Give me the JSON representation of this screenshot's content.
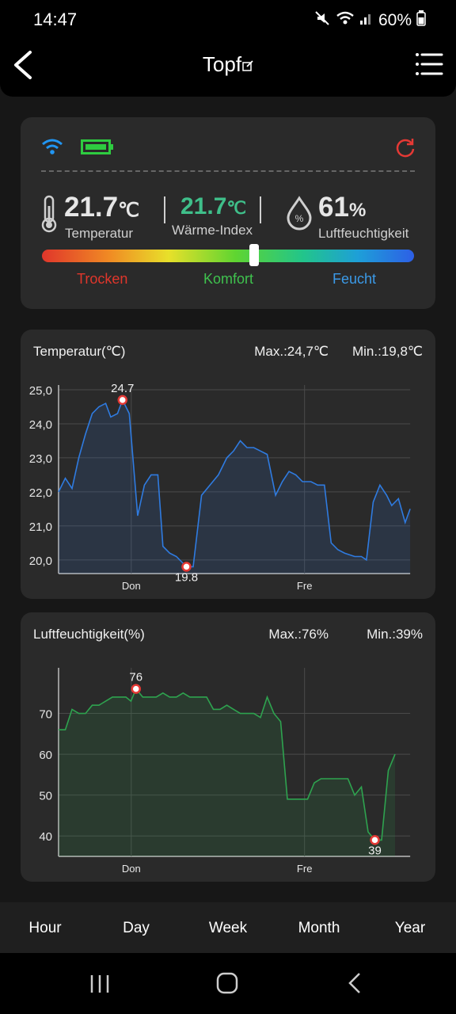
{
  "status": {
    "time": "14:47",
    "battery": "60%"
  },
  "header": {
    "title": "Topf"
  },
  "sensor": {
    "temperature_value": "21.7",
    "temperature_unit": "℃",
    "temperature_label": "Temperatur",
    "heat_index_value": "21.7",
    "heat_index_unit": "℃",
    "heat_index_label": "Wärme-Index",
    "humidity_value": "61",
    "humidity_unit": "%",
    "humidity_label": "Luftfeuchtigkeit",
    "comfort_level": 0.57,
    "zones": {
      "dry": "Trocken",
      "comfort": "Komfort",
      "wet": "Feucht"
    },
    "colors": {
      "dry": "#e0362b",
      "comfort": "#3fc24e",
      "wet": "#3b9ae8",
      "heat_index": "#3fbf8a",
      "wifi": "#2196f3",
      "battery": "#2ecc40",
      "refresh": "#e53935"
    }
  },
  "nav": {
    "tabs": [
      "Hour",
      "Day",
      "Week",
      "Month",
      "Year"
    ]
  },
  "chart_data": [
    {
      "type": "area",
      "title": "Temperatur(℃)",
      "max_label": "Max.:24,7℃",
      "min_label": "Min.:19,8℃",
      "color": "#2f7be0",
      "ylim": [
        19.6,
        25.0
      ],
      "yticks": [
        20.0,
        21.0,
        22.0,
        23.0,
        24.0,
        25.0
      ],
      "ytick_labels": [
        "20,0",
        "21,0",
        "22,0",
        "23,0",
        "24,0",
        "25,0"
      ],
      "x_ticks": [
        {
          "t": 0.216,
          "label": "Don"
        },
        {
          "t": 0.731,
          "label": "Fre"
        }
      ],
      "max_point": {
        "t": 0.19,
        "y": 24.7,
        "label": "24.7"
      },
      "min_point": {
        "t": 0.38,
        "y": 19.8,
        "label": "19.8"
      },
      "points": [
        [
          0.0,
          22.0
        ],
        [
          0.02,
          22.4
        ],
        [
          0.04,
          22.1
        ],
        [
          0.06,
          23.0
        ],
        [
          0.08,
          23.7
        ],
        [
          0.1,
          24.3
        ],
        [
          0.12,
          24.5
        ],
        [
          0.14,
          24.6
        ],
        [
          0.155,
          24.2
        ],
        [
          0.175,
          24.3
        ],
        [
          0.19,
          24.7
        ],
        [
          0.21,
          24.3
        ],
        [
          0.235,
          21.3
        ],
        [
          0.255,
          22.2
        ],
        [
          0.275,
          22.5
        ],
        [
          0.295,
          22.5
        ],
        [
          0.31,
          20.4
        ],
        [
          0.33,
          20.2
        ],
        [
          0.35,
          20.1
        ],
        [
          0.38,
          19.8
        ],
        [
          0.4,
          19.8
        ],
        [
          0.425,
          21.9
        ],
        [
          0.45,
          22.2
        ],
        [
          0.475,
          22.5
        ],
        [
          0.5,
          23.0
        ],
        [
          0.52,
          23.2
        ],
        [
          0.54,
          23.5
        ],
        [
          0.56,
          23.3
        ],
        [
          0.58,
          23.3
        ],
        [
          0.6,
          23.2
        ],
        [
          0.62,
          23.1
        ],
        [
          0.645,
          21.9
        ],
        [
          0.665,
          22.3
        ],
        [
          0.685,
          22.6
        ],
        [
          0.705,
          22.5
        ],
        [
          0.725,
          22.3
        ],
        [
          0.75,
          22.3
        ],
        [
          0.77,
          22.2
        ],
        [
          0.79,
          22.2
        ],
        [
          0.81,
          20.5
        ],
        [
          0.83,
          20.3
        ],
        [
          0.85,
          20.2
        ],
        [
          0.88,
          20.1
        ],
        [
          0.9,
          20.1
        ],
        [
          0.915,
          20.0
        ],
        [
          0.935,
          21.7
        ],
        [
          0.955,
          22.2
        ],
        [
          0.975,
          21.9
        ],
        [
          0.99,
          21.6
        ],
        [
          1.01,
          21.8
        ],
        [
          1.03,
          21.1
        ],
        [
          1.045,
          21.5
        ]
      ]
    },
    {
      "type": "area",
      "title": "Luftfeuchtigkeit(%)",
      "max_label": "Max.:76%",
      "min_label": "Min.:39%",
      "color": "#2ea34f",
      "ylim": [
        35,
        80
      ],
      "yticks": [
        40,
        50,
        60,
        70
      ],
      "ytick_labels": [
        "40",
        "50",
        "60",
        "70"
      ],
      "x_ticks": [
        {
          "t": 0.216,
          "label": "Don"
        },
        {
          "t": 0.731,
          "label": "Fre"
        }
      ],
      "max_point": {
        "t": 0.23,
        "y": 76,
        "label": "76"
      },
      "min_point": {
        "t": 0.94,
        "y": 39,
        "label": "39"
      },
      "points": [
        [
          0.0,
          66
        ],
        [
          0.02,
          66
        ],
        [
          0.04,
          71
        ],
        [
          0.06,
          70
        ],
        [
          0.08,
          70
        ],
        [
          0.1,
          72
        ],
        [
          0.12,
          72
        ],
        [
          0.14,
          73
        ],
        [
          0.16,
          74
        ],
        [
          0.18,
          74
        ],
        [
          0.2,
          74
        ],
        [
          0.215,
          73
        ],
        [
          0.23,
          76
        ],
        [
          0.25,
          74
        ],
        [
          0.27,
          74
        ],
        [
          0.29,
          74
        ],
        [
          0.31,
          75
        ],
        [
          0.33,
          74
        ],
        [
          0.35,
          74
        ],
        [
          0.37,
          75
        ],
        [
          0.39,
          74
        ],
        [
          0.42,
          74
        ],
        [
          0.44,
          74
        ],
        [
          0.46,
          71
        ],
        [
          0.48,
          71
        ],
        [
          0.5,
          72
        ],
        [
          0.52,
          71
        ],
        [
          0.54,
          70
        ],
        [
          0.56,
          70
        ],
        [
          0.58,
          70
        ],
        [
          0.6,
          69
        ],
        [
          0.62,
          74
        ],
        [
          0.64,
          70
        ],
        [
          0.66,
          68
        ],
        [
          0.68,
          49
        ],
        [
          0.7,
          49
        ],
        [
          0.72,
          49
        ],
        [
          0.74,
          49
        ],
        [
          0.76,
          53
        ],
        [
          0.78,
          54
        ],
        [
          0.8,
          54
        ],
        [
          0.82,
          54
        ],
        [
          0.84,
          54
        ],
        [
          0.86,
          54
        ],
        [
          0.88,
          50
        ],
        [
          0.9,
          52
        ],
        [
          0.92,
          41
        ],
        [
          0.94,
          39
        ],
        [
          0.96,
          39
        ],
        [
          0.98,
          56
        ],
        [
          1.0,
          60
        ]
      ]
    }
  ]
}
